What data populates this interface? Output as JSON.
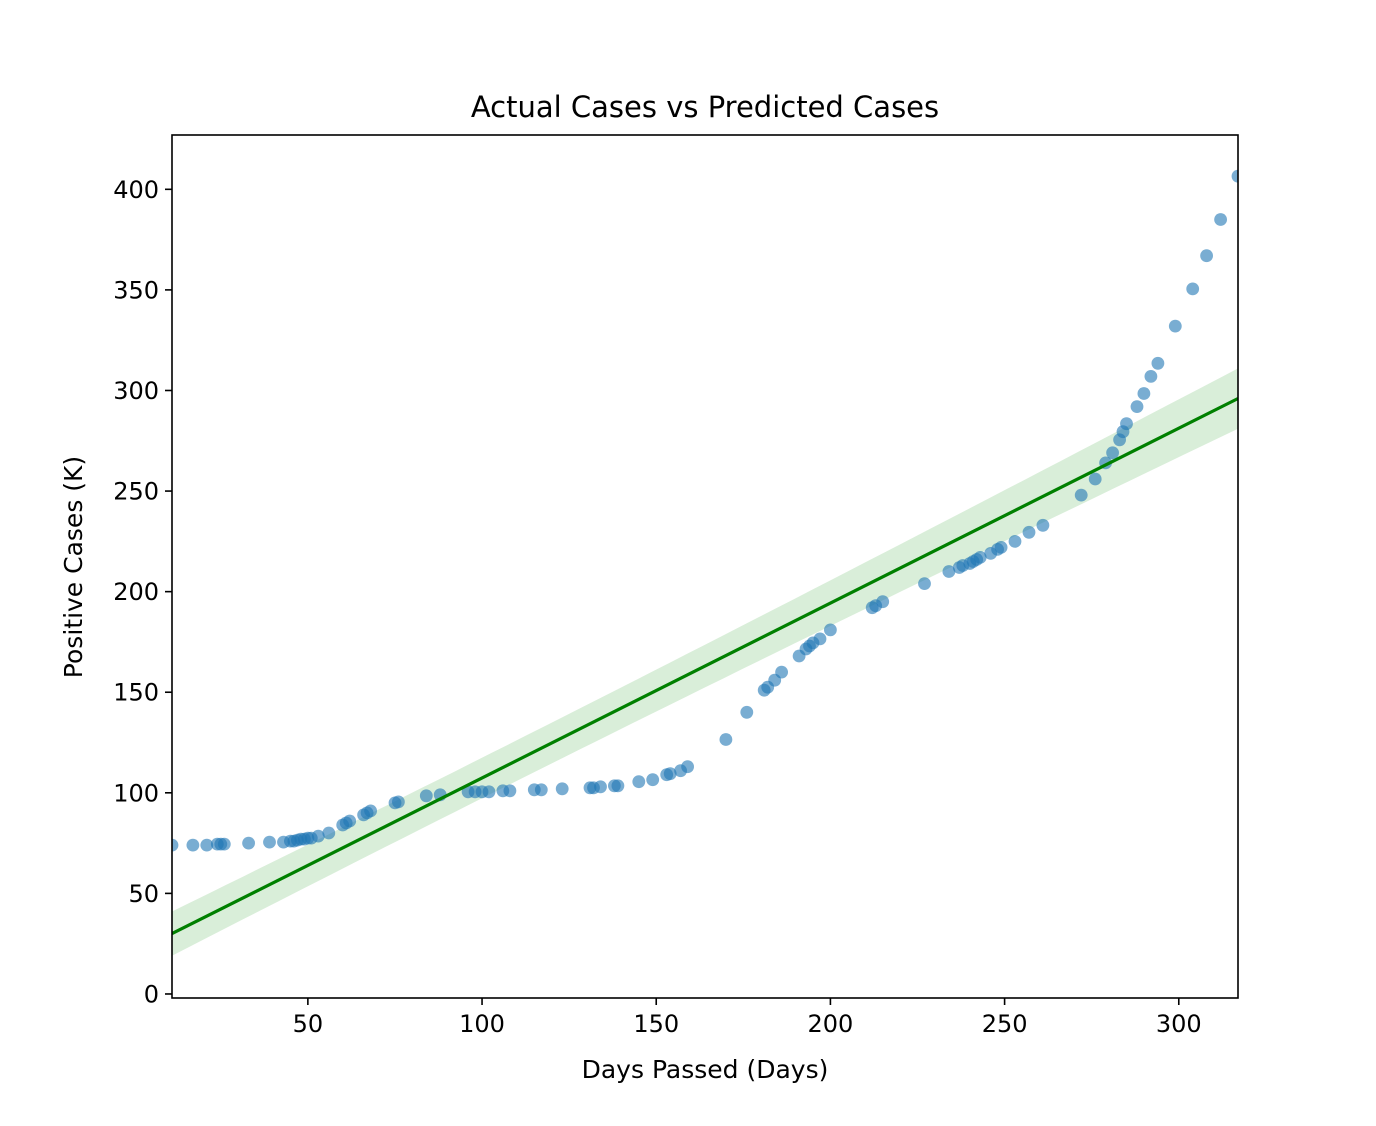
{
  "chart_data": {
    "type": "scatter",
    "title": "Actual Cases vs Predicted Cases",
    "xlabel": "Days Passed (Days)",
    "ylabel": "Positive Cases (K)",
    "xlim": [
      11,
      317
    ],
    "ylim": [
      -2,
      427
    ],
    "xticks": [
      50,
      100,
      150,
      200,
      250,
      300
    ],
    "yticks": [
      0,
      50,
      100,
      150,
      200,
      250,
      300,
      350,
      400
    ],
    "grid": false,
    "legend": "none",
    "colors": {
      "points": "#1f77b4",
      "fit_line": "#008000",
      "confidence_band": "#2ca02c"
    },
    "series": [
      {
        "kind": "scatter",
        "x": [
          11,
          17,
          21,
          24,
          25,
          26,
          33,
          39,
          43,
          45,
          46,
          47,
          48,
          49,
          50,
          51,
          53,
          56,
          60,
          61,
          62,
          66,
          67,
          68,
          75,
          76,
          84,
          88,
          96,
          98,
          100,
          102,
          106,
          108,
          115,
          117,
          123,
          131,
          132,
          134,
          138,
          139,
          145,
          149,
          153,
          154,
          157,
          159,
          170,
          176,
          181,
          182,
          184,
          186,
          191,
          193,
          194,
          195,
          197,
          200,
          212,
          213,
          215,
          227,
          234,
          237,
          238,
          240,
          241,
          242,
          243,
          246,
          248,
          249,
          253,
          257,
          261,
          272,
          276,
          279,
          281,
          283,
          284,
          285,
          288,
          290,
          292,
          294,
          299,
          304,
          308,
          312,
          317
        ],
        "y": [
          74,
          74,
          74,
          74.5,
          74.5,
          74.5,
          75,
          75.5,
          75.5,
          76,
          76,
          76.5,
          77,
          77,
          77.5,
          77.5,
          78.5,
          80,
          84,
          85,
          86,
          89,
          90,
          91,
          95,
          95.5,
          98.5,
          99,
          100.5,
          100.5,
          100.5,
          100.5,
          101,
          101,
          101.5,
          101.5,
          102,
          102.5,
          102.5,
          103,
          103.5,
          103.5,
          105.5,
          106.5,
          109,
          109.5,
          111,
          113,
          126.5,
          140,
          151,
          152.5,
          156,
          160,
          168,
          171.5,
          173,
          174.5,
          176.5,
          181,
          192,
          193,
          195,
          204,
          210,
          212,
          213,
          214,
          215,
          216,
          217,
          219,
          221,
          222,
          225,
          229.5,
          233,
          248,
          256,
          264,
          269,
          275.5,
          279.5,
          283.5,
          292,
          298.5,
          307,
          313.5,
          332,
          350.5,
          367,
          385,
          406.5
        ]
      },
      {
        "kind": "regression_line",
        "x": [
          11,
          317
        ],
        "y": [
          30,
          296
        ],
        "band_lower": [
          18,
          280
        ],
        "band_upper": [
          40,
          310
        ],
        "band_center_x": 98
      }
    ]
  }
}
